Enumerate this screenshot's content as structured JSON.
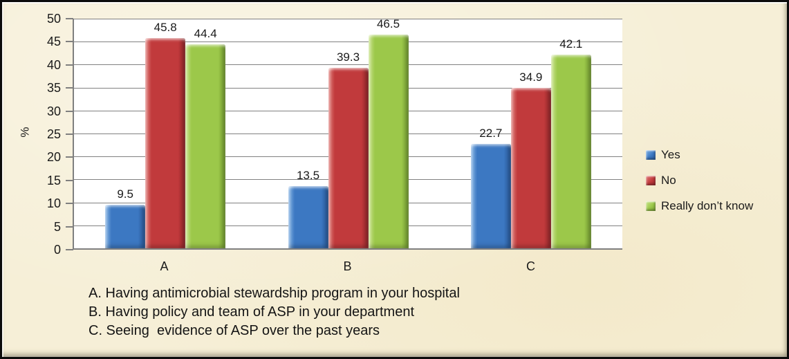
{
  "chart_data": {
    "type": "bar",
    "title": "",
    "ylabel": "%",
    "ylim": [
      0,
      50
    ],
    "ytick_step": 5,
    "yticks": [
      0,
      5,
      10,
      15,
      20,
      25,
      30,
      35,
      40,
      45,
      50
    ],
    "categories": [
      "A",
      "B",
      "C"
    ],
    "series": [
      {
        "name": "Yes",
        "color": "#3c78c2",
        "color_light": "#82b2e4",
        "color_dark": "#2a5c9e",
        "values": [
          9.5,
          13.5,
          22.7
        ]
      },
      {
        "name": "No",
        "color": "#c13a3c",
        "color_light": "#e07e7a",
        "color_dark": "#96282b",
        "values": [
          45.8,
          39.3,
          34.9
        ]
      },
      {
        "name": "Really don’t know",
        "color": "#9cc84a",
        "color_light": "#c8e288",
        "color_dark": "#78a233",
        "values": [
          44.4,
          46.5,
          42.1
        ]
      }
    ],
    "value_labels": true,
    "grid": true,
    "legend_position": "right",
    "notes": [
      "A. Having antimicrobial stewardship program in your hospital",
      "B. Having policy and team of ASP in your department",
      "C. Seeing  evidence of ASP over the past years"
    ]
  },
  "frame": {
    "background": "#f6efd7",
    "plot_background": "#ffffff",
    "gridline_color": "#808080",
    "axis_color": "#7f7f7f",
    "text_color": "#1a1a1a",
    "border_color": "#0b0b0b"
  }
}
